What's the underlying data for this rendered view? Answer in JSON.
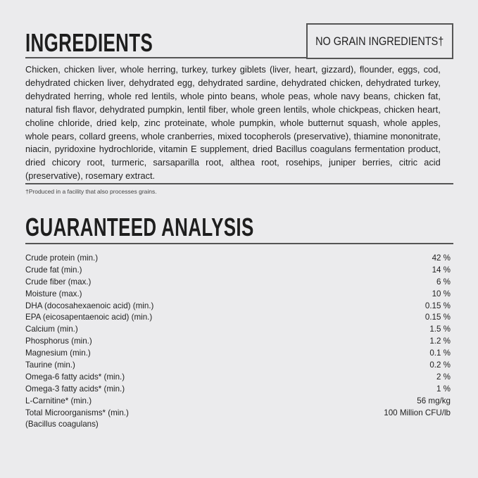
{
  "ingredients": {
    "title": "INGREDIENTS",
    "badge": "NO GRAIN INGREDIENTS†",
    "text": "Chicken, chicken liver, whole herring, turkey, turkey giblets (liver, heart, gizzard), flounder, eggs, cod, dehydrated chicken liver, dehydrated egg, dehydrated sardine, dehydrated chicken, dehydrated turkey, dehydrated herring, whole red lentils, whole pinto beans, whole peas, whole navy beans, chicken fat, natural fish flavor, dehydrated pumpkin, lentil fiber, whole green lentils, whole chickpeas, chicken heart, choline chloride, dried kelp, zinc proteinate, whole pumpkin, whole butternut squash, whole apples, whole pears, collard greens, whole cranberries, mixed tocopherols (preservative), thiamine mononitrate, niacin, pyridoxine hydrochloride, vitamin E supplement, dried Bacillus coagulans fermentation product, dried chicory root, turmeric, sarsaparilla root, althea root, rosehips, juniper berries, citric acid (preservative), rosemary extract.",
    "footnote": "†Produced in a facility that also processes grains."
  },
  "analysis": {
    "title": "GUARANTEED ANALYSIS",
    "rows": [
      {
        "label": "Crude protein (min.)",
        "value": "42 %"
      },
      {
        "label": "Crude fat (min.)",
        "value": "14 %"
      },
      {
        "label": "Crude fiber (max.)",
        "value": "6 %"
      },
      {
        "label": "Moisture (max.)",
        "value": "10 %"
      },
      {
        "label": "DHA (docosahexaenoic acid) (min.)",
        "value": "0.15 %"
      },
      {
        "label": "EPA (eicosapentaenoic acid) (min.)",
        "value": "0.15 %"
      },
      {
        "label": "Calcium (min.)",
        "value": "1.5 %"
      },
      {
        "label": "Phosphorus (min.)",
        "value": "1.2 %"
      },
      {
        "label": "Magnesium (min.)",
        "value": "0.1 %"
      },
      {
        "label": "Taurine (min.)",
        "value": "0.2 %"
      },
      {
        "label": "Omega-6 fatty acids* (min.)",
        "value": "2 %"
      },
      {
        "label": "Omega-3 fatty acids* (min.)",
        "value": "1 %"
      },
      {
        "label": "L-Carnitine* (min.)",
        "value": "56 mg/kg"
      },
      {
        "label": "Total Microorganisms* (min.)",
        "value": "100 Million CFU/lb"
      },
      {
        "label": "(Bacillus coagulans)",
        "value": ""
      }
    ]
  }
}
